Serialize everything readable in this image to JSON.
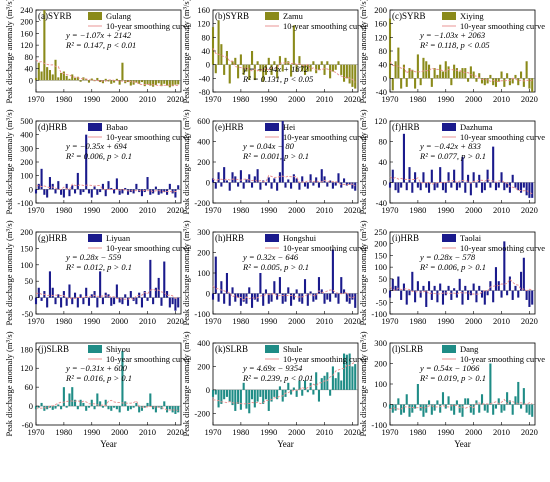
{
  "figure": {
    "ylabel": "Peak discharge anomaly (m³/s)",
    "xlabel": "Year",
    "smoothing_label": "10-year smoothing curve",
    "colors": {
      "SYRB": "#8a8a1a",
      "HRB": "#1a1a8c",
      "SLRB": "#1f8c86",
      "smooth": "#e88a8a"
    }
  },
  "chart_data": [
    {
      "type": "bar",
      "panel": "(a)SYRB",
      "station": "Gulang",
      "basin": "SYRB",
      "eq": "y = −1.07x + 2142",
      "r2": "R² = 0.147, p < 0.01",
      "xlim": [
        1970,
        2022
      ],
      "ylim": [
        -40,
        240
      ],
      "yticks": [
        0,
        40,
        80,
        120,
        160,
        200,
        240
      ],
      "xticks": [
        1970,
        1980,
        1990,
        2000,
        2010,
        2020
      ],
      "start_year": 1970,
      "values": [
        8,
        60,
        30,
        240,
        45,
        35,
        20,
        70,
        10,
        25,
        30,
        15,
        5,
        20,
        8,
        12,
        -5,
        10,
        5,
        -8,
        6,
        -3,
        8,
        -6,
        -10,
        5,
        -4,
        -12,
        -8,
        5,
        -15,
        60,
        -10,
        -6,
        -18,
        -15,
        -8,
        -12,
        -6,
        -20,
        -14,
        -18,
        -22,
        -16,
        -10,
        -20,
        -12,
        -18,
        -24,
        -20,
        -15,
        -14
      ]
    },
    {
      "type": "bar",
      "panel": "(b)SYRB",
      "station": "Zamu",
      "basin": "SYRB",
      "eq": "y = −0.94x + 1872",
      "r2": "R² = 0.131, p < 0.05",
      "xlim": [
        1970,
        2022
      ],
      "ylim": [
        -80,
        160
      ],
      "yticks": [
        -80,
        -40,
        0,
        40,
        80,
        120,
        160
      ],
      "xticks": [
        1970,
        1980,
        1990,
        2000,
        2010,
        2020
      ],
      "start_year": 1970,
      "values": [
        110,
        -25,
        130,
        60,
        -30,
        40,
        -55,
        10,
        20,
        -40,
        30,
        -30,
        -20,
        -45,
        40,
        -45,
        10,
        -20,
        -50,
        -30,
        20,
        -30,
        10,
        -40,
        25,
        -20,
        20,
        10,
        -35,
        115,
        -20,
        25,
        -20,
        -30,
        -20,
        -20,
        10,
        -25,
        -15,
        10,
        -30,
        10,
        -40,
        -20,
        -15,
        10,
        -30,
        -50,
        -40,
        -55,
        -65,
        -70
      ]
    },
    {
      "type": "bar",
      "panel": "(c)SYRB",
      "station": "Xiying",
      "basin": "SYRB",
      "eq": "y = −1.03x + 2063",
      "r2": "R² = 0.118, p < 0.05",
      "xlim": [
        1970,
        2022
      ],
      "ylim": [
        -40,
        200
      ],
      "yticks": [
        -40,
        0,
        40,
        80,
        120,
        160,
        200
      ],
      "xticks": [
        1970,
        1980,
        1990,
        2000,
        2010,
        2020
      ],
      "start_year": 1970,
      "values": [
        175,
        -35,
        50,
        90,
        -30,
        40,
        -25,
        30,
        25,
        -30,
        70,
        -20,
        60,
        50,
        40,
        -25,
        30,
        10,
        40,
        20,
        50,
        35,
        -20,
        40,
        30,
        20,
        30,
        30,
        -10,
        35,
        20,
        -10,
        15,
        -15,
        -20,
        -15,
        10,
        -20,
        -25,
        -10,
        20,
        -25,
        15,
        -20,
        -15,
        10,
        -20,
        20,
        -25,
        50,
        -30,
        -40
      ]
    },
    {
      "type": "bar",
      "panel": "(d)HRB",
      "station": "Babao",
      "basin": "HRB",
      "eq": "y = −0.35x + 694",
      "r2": "R² = 0.006, p > 0.1",
      "xlim": [
        1970,
        2022
      ],
      "ylim": [
        -100,
        500
      ],
      "yticks": [
        -100,
        0,
        100,
        200,
        300,
        400,
        500
      ],
      "xticks": [
        1970,
        1980,
        1990,
        2000,
        2010,
        2020
      ],
      "start_year": 1970,
      "values": [
        -30,
        40,
        150,
        -40,
        -60,
        90,
        40,
        -30,
        60,
        -40,
        -60,
        40,
        -50,
        30,
        -30,
        120,
        -40,
        -20,
        400,
        -30,
        -60,
        20,
        -40,
        -20,
        40,
        -50,
        60,
        10,
        -30,
        80,
        -40,
        -30,
        10,
        -40,
        -20,
        -30,
        40,
        -20,
        -50,
        -20,
        90,
        -40,
        -30,
        20,
        -40,
        -30,
        -20,
        -40,
        40,
        -30,
        -60,
        30
      ]
    },
    {
      "type": "bar",
      "panel": "(e)HRB",
      "station": "Hei",
      "basin": "HRB",
      "eq": "y = 0.04x − 80",
      "r2": "R² = 0.001, p > 0.1",
      "xlim": [
        1970,
        2022
      ],
      "ylim": [
        -200,
        600
      ],
      "yticks": [
        -200,
        0,
        200,
        400,
        600
      ],
      "xticks": [
        1970,
        1980,
        1990,
        2000,
        2010,
        2020
      ],
      "start_year": 1970,
      "values": [
        40,
        -60,
        100,
        -40,
        150,
        20,
        -80,
        100,
        60,
        -40,
        120,
        -60,
        30,
        80,
        -50,
        60,
        130,
        -70,
        20,
        -30,
        50,
        -60,
        40,
        -80,
        100,
        600,
        -50,
        30,
        -60,
        80,
        40,
        -70,
        60,
        -40,
        -60,
        80,
        -30,
        50,
        -50,
        130,
        60,
        -40,
        20,
        -60,
        -30,
        90,
        -50,
        40,
        -30,
        -20,
        -60,
        -80
      ]
    },
    {
      "type": "bar",
      "panel": "(f)HRB",
      "station": "Dazhuma",
      "basin": "HRB",
      "eq": "y = −0.42x + 833",
      "r2": "R² = 0.077, p > 0.1",
      "xlim": [
        1970,
        2022
      ],
      "ylim": [
        -40,
        120
      ],
      "yticks": [
        -40,
        0,
        40,
        80,
        120
      ],
      "xticks": [
        1970,
        1980,
        1990,
        2000,
        2010,
        2020
      ],
      "start_year": 1970,
      "values": [
        -10,
        25,
        -15,
        -20,
        -10,
        95,
        -15,
        30,
        -20,
        20,
        -10,
        -15,
        20,
        -10,
        -20,
        25,
        -15,
        -10,
        30,
        -15,
        -20,
        20,
        -10,
        25,
        -15,
        -10,
        50,
        -20,
        15,
        -25,
        20,
        -10,
        15,
        -20,
        -15,
        25,
        -10,
        70,
        -15,
        -10,
        20,
        -15,
        -10,
        -20,
        15,
        -10,
        -15,
        -20,
        -10,
        -25,
        -30,
        -30
      ]
    },
    {
      "type": "bar",
      "panel": "(g)HRB",
      "station": "Liyuan",
      "basin": "HRB",
      "eq": "y = 0.28x − 559",
      "r2": "R² = 0.012, p > 0.1",
      "xlim": [
        1970,
        2022
      ],
      "ylim": [
        -50,
        200
      ],
      "yticks": [
        -50,
        0,
        50,
        100,
        150,
        200
      ],
      "xticks": [
        1970,
        1980,
        1990,
        2000,
        2010,
        2020
      ],
      "start_year": 1970,
      "values": [
        -20,
        30,
        -10,
        20,
        -30,
        80,
        30,
        -20,
        10,
        -30,
        20,
        -25,
        40,
        -20,
        15,
        -30,
        10,
        -20,
        30,
        -25,
        10,
        20,
        -30,
        80,
        -20,
        15,
        10,
        -25,
        -20,
        40,
        -15,
        -20,
        10,
        -25,
        20,
        -10,
        -20,
        15,
        -30,
        20,
        -10,
        115,
        -20,
        30,
        60,
        -25,
        110,
        20,
        -30,
        -20,
        -40,
        -30
      ]
    },
    {
      "type": "bar",
      "panel": "(h)HRB",
      "station": "Hongshui",
      "basin": "HRB",
      "eq": "y = 0.32x − 646",
      "r2": "R² = 0.005, p > 0.1",
      "xlim": [
        1970,
        2022
      ],
      "ylim": [
        -100,
        300
      ],
      "yticks": [
        -100,
        0,
        100,
        200,
        300
      ],
      "xticks": [
        1970,
        1980,
        1990,
        2000,
        2010,
        2020
      ],
      "start_year": 1970,
      "values": [
        -30,
        180,
        -40,
        60,
        -50,
        100,
        -60,
        30,
        -40,
        -20,
        -60,
        -40,
        -50,
        30,
        -70,
        -30,
        -40,
        100,
        -60,
        20,
        -50,
        -40,
        60,
        -30,
        80,
        -50,
        -40,
        30,
        -60,
        -30,
        20,
        -40,
        -50,
        70,
        -60,
        10,
        -40,
        -30,
        80,
        20,
        -50,
        -30,
        -40,
        215,
        -20,
        -50,
        80,
        20,
        -40,
        -50,
        -30,
        -70
      ]
    },
    {
      "type": "bar",
      "panel": "(i)HRB",
      "station": "Taolai",
      "basin": "HRB",
      "eq": "y = 0.28x − 578",
      "r2": "R² = 0.006, p > 0.1",
      "xlim": [
        1970,
        2022
      ],
      "ylim": [
        -100,
        250
      ],
      "yticks": [
        -100,
        -50,
        0,
        50,
        100,
        150,
        200,
        250
      ],
      "xticks": [
        1970,
        1980,
        1990,
        2000,
        2010,
        2020
      ],
      "start_year": 1970,
      "values": [
        -30,
        50,
        20,
        60,
        -40,
        30,
        -60,
        -20,
        80,
        -50,
        40,
        -30,
        20,
        -70,
        40,
        -40,
        20,
        -50,
        30,
        -60,
        -20,
        20,
        -40,
        10,
        -30,
        50,
        -60,
        20,
        -40,
        -20,
        30,
        -50,
        20,
        -30,
        -60,
        -20,
        40,
        -50,
        100,
        40,
        -30,
        210,
        -20,
        60,
        -40,
        20,
        -30,
        80,
        140,
        -40,
        -70,
        -60
      ]
    },
    {
      "type": "bar",
      "panel": "(j)SLRB",
      "station": "Shiyou",
      "basin": "SLRB",
      "eq": "y = −0.31x + 600",
      "r2": "R² = 0.016, p > 0.1",
      "xlim": [
        1970,
        2022
      ],
      "ylim": [
        -60,
        200
      ],
      "yticks": [
        -60,
        0,
        60,
        120,
        180
      ],
      "xticks": [
        1970,
        1980,
        1990,
        2000,
        2010,
        2020
      ],
      "start_year": 1970,
      "values": [
        -10,
        -5,
        10,
        -15,
        -10,
        -5,
        -12,
        -8,
        5,
        -10,
        60,
        -5,
        40,
        60,
        20,
        -10,
        20,
        10,
        -15,
        -5,
        20,
        -10,
        40,
        15,
        -5,
        20,
        -10,
        -15,
        -5,
        -10,
        -20,
        175,
        15,
        -15,
        -10,
        -5,
        10,
        -20,
        -15,
        -5,
        10,
        40,
        -10,
        -20,
        -5,
        -10,
        15,
        -20,
        -10,
        -20,
        -25,
        -20
      ]
    },
    {
      "type": "bar",
      "panel": "(k)SLRB",
      "station": "Shule",
      "basin": "SLRB",
      "eq": "y = 4.69x − 9354",
      "r2": "R² = 0.239, p < 0.01",
      "xlim": [
        1970,
        2022
      ],
      "ylim": [
        -300,
        400
      ],
      "yticks": [
        -200,
        0,
        200,
        400
      ],
      "xticks": [
        1970,
        1980,
        1990,
        2000,
        2010,
        2020
      ],
      "start_year": 1970,
      "values": [
        -60,
        -40,
        -150,
        -120,
        -80,
        -60,
        -100,
        -130,
        -180,
        -120,
        -170,
        60,
        -160,
        -200,
        -80,
        -150,
        -100,
        -60,
        -120,
        -80,
        -180,
        -100,
        -60,
        -80,
        30,
        -100,
        -60,
        60,
        -40,
        20,
        -60,
        80,
        -50,
        80,
        -20,
        60,
        -40,
        150,
        -100,
        100,
        120,
        150,
        -50,
        200,
        100,
        150,
        80,
        310,
        300,
        310,
        200,
        220
      ]
    },
    {
      "type": "bar",
      "panel": "(l)SLRB",
      "station": "Dang",
      "basin": "SLRB",
      "eq": "y = 0.54x − 1066",
      "r2": "R² = 0.019, p > 0.1",
      "xlim": [
        1970,
        2022
      ],
      "ylim": [
        -100,
        300
      ],
      "yticks": [
        -100,
        0,
        100,
        200,
        300
      ],
      "xticks": [
        1970,
        1980,
        1990,
        2000,
        2010,
        2020
      ],
      "start_year": 1970,
      "values": [
        -20,
        -40,
        -30,
        30,
        -50,
        -40,
        50,
        -60,
        -40,
        -20,
        100,
        -30,
        -60,
        -40,
        20,
        -50,
        -30,
        20,
        -40,
        60,
        -20,
        40,
        -30,
        -50,
        20,
        -40,
        -60,
        30,
        30,
        -40,
        -50,
        20,
        -40,
        50,
        -30,
        -40,
        200,
        -50,
        -20,
        30,
        -40,
        -30,
        60,
        20,
        -50,
        40,
        110,
        -20,
        80,
        -40,
        -50,
        -60
      ]
    }
  ]
}
